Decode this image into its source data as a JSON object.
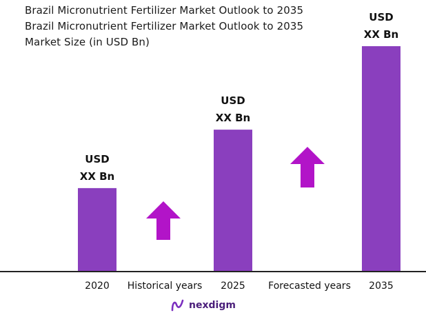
{
  "chart_data": {
    "type": "bar",
    "title_lines": [
      "Brazil Micronutrient Fertilizer Market Outlook to 2035",
      "Brazil Micronutrient Fertilizer Market Outlook to 2035",
      "Market Size (in USD Bn)"
    ],
    "categories": [
      "2020",
      "2025",
      "2035"
    ],
    "values": [
      1.0,
      1.7,
      2.7
    ],
    "bar_labels": [
      [
        "USD",
        "XX Bn"
      ],
      [
        "USD",
        "XX Bn"
      ],
      [
        "USD",
        "XX Bn"
      ]
    ],
    "period_labels": [
      "Historical years",
      "Forecasted years"
    ],
    "bar_color": "#8a3fbe",
    "arrow_color": "#b214c8",
    "ylim": [
      0,
      2.7
    ]
  },
  "brand": {
    "name": "nexdigm",
    "color": "#4a1e7a"
  }
}
